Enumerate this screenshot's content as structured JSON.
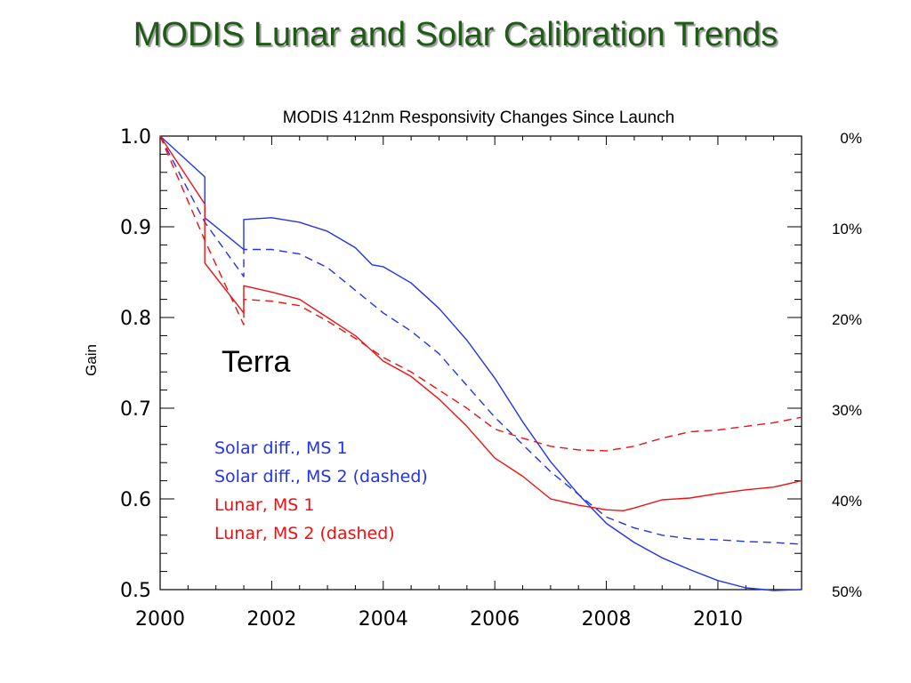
{
  "slide": {
    "title": "MODIS Lunar and Solar Calibration Trends"
  },
  "chart_data": {
    "type": "line",
    "title": "MODIS 412nm Responsivity Changes Since Launch",
    "xlabel": "",
    "ylabel": "Gain",
    "xlim": [
      2000,
      2011.5
    ],
    "ylim": [
      0.5,
      1.0
    ],
    "x_ticks": [
      "2000",
      "2002",
      "2004",
      "2006",
      "2008",
      "2010"
    ],
    "y_ticks": [
      "1.0",
      "0.9",
      "0.8",
      "0.7",
      "0.6",
      "0.5"
    ],
    "secondary_y_ticks": [
      "0%",
      "10%",
      "20%",
      "30%",
      "40%",
      "50%"
    ],
    "annotation": "Terra",
    "legend_placement": "lower-left",
    "grid": false,
    "series": [
      {
        "name": "Solar diff., MS 1",
        "color": "#2233ee",
        "dash": false,
        "points": [
          [
            2000.0,
            1.0
          ],
          [
            2000.8,
            0.955
          ],
          [
            2000.8,
            0.91
          ],
          [
            2001.5,
            0.875
          ],
          [
            2001.5,
            0.908
          ],
          [
            2002.0,
            0.91
          ],
          [
            2002.5,
            0.905
          ],
          [
            2003.0,
            0.895
          ],
          [
            2003.5,
            0.877
          ],
          [
            2003.8,
            0.858
          ],
          [
            2004.0,
            0.856
          ],
          [
            2004.5,
            0.838
          ],
          [
            2005.0,
            0.81
          ],
          [
            2005.5,
            0.775
          ],
          [
            2006.0,
            0.733
          ],
          [
            2006.5,
            0.685
          ],
          [
            2007.0,
            0.641
          ],
          [
            2007.5,
            0.605
          ],
          [
            2008.0,
            0.573
          ],
          [
            2008.5,
            0.552
          ],
          [
            2009.0,
            0.535
          ],
          [
            2009.5,
            0.522
          ],
          [
            2010.0,
            0.51
          ],
          [
            2010.5,
            0.502
          ],
          [
            2011.0,
            0.499
          ],
          [
            2011.5,
            0.5
          ]
        ]
      },
      {
        "name": "Solar diff., MS 2 (dashed)",
        "color": "#2233ee",
        "dash": true,
        "points": [
          [
            2000.0,
            1.0
          ],
          [
            2000.8,
            0.905
          ],
          [
            2001.5,
            0.845
          ],
          [
            2001.5,
            0.875
          ],
          [
            2002.0,
            0.875
          ],
          [
            2002.5,
            0.87
          ],
          [
            2003.0,
            0.855
          ],
          [
            2003.5,
            0.83
          ],
          [
            2004.0,
            0.805
          ],
          [
            2004.5,
            0.785
          ],
          [
            2005.0,
            0.76
          ],
          [
            2005.5,
            0.725
          ],
          [
            2006.0,
            0.69
          ],
          [
            2006.5,
            0.66
          ],
          [
            2007.0,
            0.63
          ],
          [
            2007.5,
            0.605
          ],
          [
            2008.0,
            0.58
          ],
          [
            2008.5,
            0.568
          ],
          [
            2009.0,
            0.56
          ],
          [
            2009.5,
            0.556
          ],
          [
            2010.0,
            0.555
          ],
          [
            2010.5,
            0.553
          ],
          [
            2011.0,
            0.552
          ],
          [
            2011.5,
            0.55
          ]
        ]
      },
      {
        "name": "Lunar, MS 1",
        "color": "#ee1111",
        "dash": false,
        "points": [
          [
            2000.0,
            1.0
          ],
          [
            2000.8,
            0.925
          ],
          [
            2000.8,
            0.86
          ],
          [
            2001.5,
            0.805
          ],
          [
            2001.5,
            0.835
          ],
          [
            2002.0,
            0.828
          ],
          [
            2002.5,
            0.82
          ],
          [
            2003.0,
            0.8
          ],
          [
            2003.5,
            0.78
          ],
          [
            2004.0,
            0.752
          ],
          [
            2004.5,
            0.735
          ],
          [
            2005.0,
            0.71
          ],
          [
            2005.5,
            0.68
          ],
          [
            2006.0,
            0.645
          ],
          [
            2006.5,
            0.625
          ],
          [
            2007.0,
            0.6
          ],
          [
            2007.5,
            0.593
          ],
          [
            2008.0,
            0.588
          ],
          [
            2008.3,
            0.587
          ],
          [
            2008.5,
            0.59
          ],
          [
            2009.0,
            0.599
          ],
          [
            2009.5,
            0.601
          ],
          [
            2010.0,
            0.606
          ],
          [
            2010.5,
            0.61
          ],
          [
            2011.0,
            0.613
          ],
          [
            2011.5,
            0.62
          ]
        ]
      },
      {
        "name": "Lunar, MS 2 (dashed)",
        "color": "#ee1111",
        "dash": true,
        "points": [
          [
            2000.0,
            1.0
          ],
          [
            2000.8,
            0.885
          ],
          [
            2001.5,
            0.792
          ],
          [
            2001.5,
            0.82
          ],
          [
            2002.0,
            0.818
          ],
          [
            2002.5,
            0.813
          ],
          [
            2003.0,
            0.796
          ],
          [
            2003.5,
            0.777
          ],
          [
            2004.0,
            0.756
          ],
          [
            2004.5,
            0.74
          ],
          [
            2005.0,
            0.72
          ],
          [
            2005.5,
            0.7
          ],
          [
            2006.0,
            0.677
          ],
          [
            2006.5,
            0.667
          ],
          [
            2007.0,
            0.658
          ],
          [
            2007.5,
            0.654
          ],
          [
            2008.0,
            0.653
          ],
          [
            2008.5,
            0.658
          ],
          [
            2009.0,
            0.667
          ],
          [
            2009.5,
            0.674
          ],
          [
            2010.0,
            0.676
          ],
          [
            2010.5,
            0.68
          ],
          [
            2011.0,
            0.684
          ],
          [
            2011.5,
            0.69
          ]
        ]
      }
    ]
  }
}
